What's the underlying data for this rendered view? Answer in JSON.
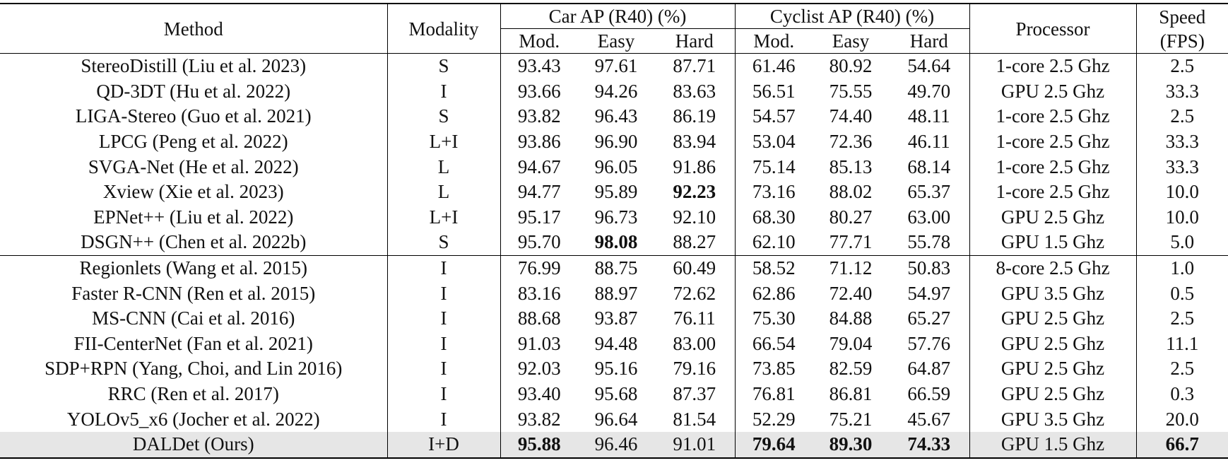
{
  "headers": {
    "method": "Method",
    "modality": "Modality",
    "car_group": "Car AP (R40) (%)",
    "cyclist_group": "Cyclist AP (R40) (%)",
    "processor": "Processor",
    "speed_line1": "Speed",
    "speed_line2": "(FPS)",
    "mod": "Mod.",
    "easy": "Easy",
    "hard": "Hard"
  },
  "rows": [
    {
      "method": "StereoDistill (Liu et al. 2023)",
      "modality": "S",
      "car_mod": "93.43",
      "car_easy": "97.61",
      "car_hard": "87.71",
      "cyc_mod": "61.46",
      "cyc_easy": "80.92",
      "cyc_hard": "54.64",
      "processor": "1-core 2.5 Ghz",
      "speed": "2.5"
    },
    {
      "method": "QD-3DT (Hu et al. 2022)",
      "modality": "I",
      "car_mod": "93.66",
      "car_easy": "94.26",
      "car_hard": "83.63",
      "cyc_mod": "56.51",
      "cyc_easy": "75.55",
      "cyc_hard": "49.70",
      "processor": "GPU 2.5 Ghz",
      "speed": "33.3"
    },
    {
      "method": "LIGA-Stereo (Guo et al. 2021)",
      "modality": "S",
      "car_mod": "93.82",
      "car_easy": "96.43",
      "car_hard": "86.19",
      "cyc_mod": "54.57",
      "cyc_easy": "74.40",
      "cyc_hard": "48.11",
      "processor": "1-core 2.5 Ghz",
      "speed": "2.5"
    },
    {
      "method": "LPCG (Peng et al. 2022)",
      "modality": "L+I",
      "car_mod": "93.86",
      "car_easy": "96.90",
      "car_hard": "83.94",
      "cyc_mod": "53.04",
      "cyc_easy": "72.36",
      "cyc_hard": "46.11",
      "processor": "1-core 2.5 Ghz",
      "speed": "33.3"
    },
    {
      "method": "SVGA-Net (He et al. 2022)",
      "modality": "L",
      "car_mod": "94.67",
      "car_easy": "96.05",
      "car_hard": "91.86",
      "cyc_mod": "75.14",
      "cyc_easy": "85.13",
      "cyc_hard": "68.14",
      "processor": "1-core 2.5 Ghz",
      "speed": "33.3"
    },
    {
      "method": "Xview (Xie et al. 2023)",
      "modality": "L",
      "car_mod": "94.77",
      "car_easy": "95.89",
      "car_hard": "92.23",
      "cyc_mod": "73.16",
      "cyc_easy": "88.02",
      "cyc_hard": "65.37",
      "processor": "1-core 2.5 Ghz",
      "speed": "10.0"
    },
    {
      "method": "EPNet++ (Liu et al. 2022)",
      "modality": "L+I",
      "car_mod": "95.17",
      "car_easy": "96.73",
      "car_hard": "92.10",
      "cyc_mod": "68.30",
      "cyc_easy": "80.27",
      "cyc_hard": "63.00",
      "processor": "GPU 2.5 Ghz",
      "speed": "10.0"
    },
    {
      "method": "DSGN++ (Chen et al. 2022b)",
      "modality": "S",
      "car_mod": "95.70",
      "car_easy": "98.08",
      "car_hard": "88.27",
      "cyc_mod": "62.10",
      "cyc_easy": "77.71",
      "cyc_hard": "55.78",
      "processor": "GPU 1.5 Ghz",
      "speed": "5.0"
    },
    {
      "method": "Regionlets (Wang et al. 2015)",
      "modality": "I",
      "car_mod": "76.99",
      "car_easy": "88.75",
      "car_hard": "60.49",
      "cyc_mod": "58.52",
      "cyc_easy": "71.12",
      "cyc_hard": "50.83",
      "processor": "8-core 2.5 Ghz",
      "speed": "1.0"
    },
    {
      "method": "Faster R-CNN (Ren et al. 2015)",
      "modality": "I",
      "car_mod": "83.16",
      "car_easy": "88.97",
      "car_hard": "72.62",
      "cyc_mod": "62.86",
      "cyc_easy": "72.40",
      "cyc_hard": "54.97",
      "processor": "GPU 3.5 Ghz",
      "speed": "0.5"
    },
    {
      "method": "MS-CNN (Cai et al. 2016)",
      "modality": "I",
      "car_mod": "88.68",
      "car_easy": "93.87",
      "car_hard": "76.11",
      "cyc_mod": "75.30",
      "cyc_easy": "84.88",
      "cyc_hard": "65.27",
      "processor": "GPU 2.5 Ghz",
      "speed": "2.5"
    },
    {
      "method": "FII-CenterNet (Fan et al. 2021)",
      "modality": "I",
      "car_mod": "91.03",
      "car_easy": "94.48",
      "car_hard": "83.00",
      "cyc_mod": "66.54",
      "cyc_easy": "79.04",
      "cyc_hard": "57.76",
      "processor": "GPU 2.5 Ghz",
      "speed": "11.1"
    },
    {
      "method": "SDP+RPN (Yang, Choi, and Lin 2016)",
      "modality": "I",
      "car_mod": "92.03",
      "car_easy": "95.16",
      "car_hard": "79.16",
      "cyc_mod": "73.85",
      "cyc_easy": "82.59",
      "cyc_hard": "64.87",
      "processor": "GPU 2.5 Ghz",
      "speed": "2.5"
    },
    {
      "method": "RRC (Ren et al. 2017)",
      "modality": "I",
      "car_mod": "93.40",
      "car_easy": "95.68",
      "car_hard": "87.37",
      "cyc_mod": "76.81",
      "cyc_easy": "86.81",
      "cyc_hard": "66.59",
      "processor": "GPU 2.5 Ghz",
      "speed": "0.3"
    },
    {
      "method": "YOLOv5_x6 (Jocher et al. 2022)",
      "modality": "I",
      "car_mod": "93.82",
      "car_easy": "96.64",
      "car_hard": "81.54",
      "cyc_mod": "52.29",
      "cyc_easy": "75.21",
      "cyc_hard": "45.67",
      "processor": "GPU 3.5 Ghz",
      "speed": "20.0"
    },
    {
      "method": "DALDet (Ours)",
      "modality": "I+D",
      "car_mod": "95.88",
      "car_easy": "96.46",
      "car_hard": "91.01",
      "cyc_mod": "79.64",
      "cyc_easy": "89.30",
      "cyc_hard": "74.33",
      "processor": "GPU 1.5 Ghz",
      "speed": "66.7"
    }
  ]
}
